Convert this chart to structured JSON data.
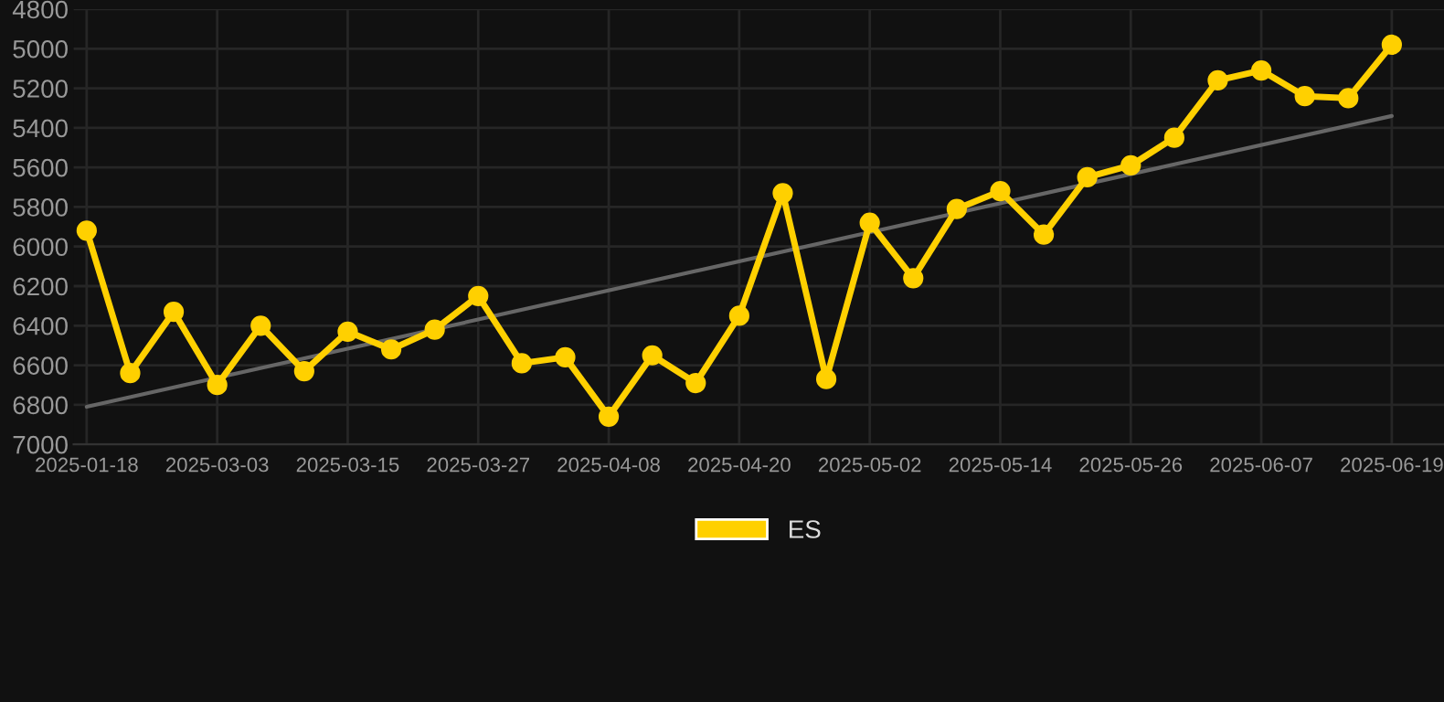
{
  "chart_data": {
    "type": "line",
    "categories": [
      "2025-01-18",
      null,
      null,
      "2025-03-03",
      null,
      null,
      "2025-03-15",
      null,
      null,
      "2025-03-27",
      null,
      null,
      "2025-04-08",
      null,
      null,
      "2025-04-20",
      null,
      null,
      "2025-05-02",
      null,
      null,
      "2025-05-14",
      null,
      null,
      "2025-05-26",
      null,
      null,
      "2025-06-07",
      null,
      null,
      "2025-06-19"
    ],
    "series": [
      {
        "name": "ES",
        "color": "#ffd000",
        "marker": "circle",
        "values": [
          5920,
          6640,
          6330,
          6700,
          6400,
          6630,
          6430,
          6520,
          6420,
          6250,
          6590,
          6560,
          6860,
          6550,
          6690,
          6350,
          5730,
          6670,
          5880,
          6160,
          5810,
          5720,
          5940,
          5650,
          5590,
          5450,
          5160,
          5110,
          5240,
          5250,
          4980
        ]
      },
      {
        "color": "#666666",
        "marker": "none",
        "values": [
          6810,
          null,
          null,
          null,
          null,
          null,
          null,
          null,
          null,
          null,
          null,
          null,
          null,
          null,
          null,
          null,
          null,
          null,
          null,
          null,
          null,
          null,
          null,
          null,
          null,
          null,
          null,
          null,
          null,
          null,
          5340
        ]
      }
    ],
    "ylim": [
      7000,
      4800
    ],
    "yticks": [
      4800,
      5000,
      5200,
      5400,
      5600,
      5800,
      6000,
      6200,
      6400,
      6600,
      6800,
      7000
    ],
    "grid": true,
    "legend": "bottom"
  }
}
